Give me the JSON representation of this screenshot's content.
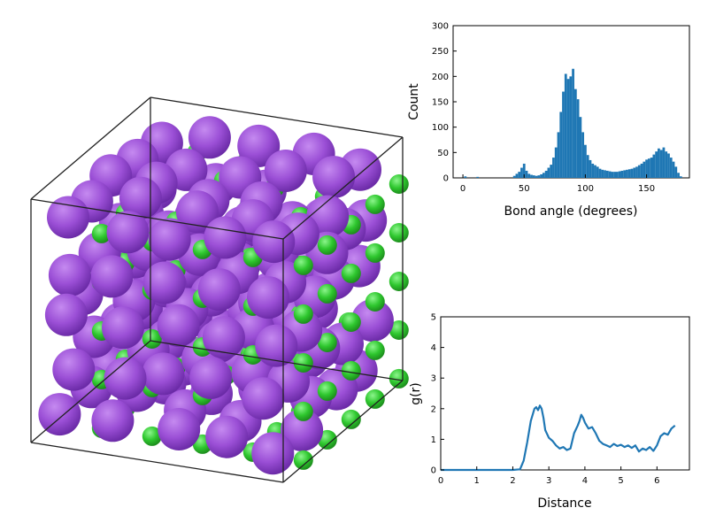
{
  "scene": {
    "atom_colors": {
      "large": "#9b4fd6",
      "small": "#2ec72e"
    },
    "box_edge_color": "#222222"
  },
  "chart_data": [
    {
      "type": "bar",
      "xlabel": "Bond angle (degrees)",
      "ylabel": "Count",
      "xlim": [
        -8,
        185
      ],
      "ylim": [
        0,
        300
      ],
      "xticks": [
        0,
        50,
        100,
        150
      ],
      "yticks": [
        0,
        50,
        100,
        150,
        200,
        250,
        300
      ],
      "color": "#1f77b4",
      "grid": false,
      "bins_center": [
        2,
        12,
        42,
        44,
        46,
        48,
        50,
        52,
        54,
        56,
        58,
        60,
        62,
        64,
        66,
        68,
        70,
        72,
        74,
        76,
        78,
        80,
        82,
        84,
        86,
        88,
        90,
        92,
        94,
        96,
        98,
        100,
        102,
        104,
        106,
        108,
        110,
        112,
        114,
        116,
        118,
        120,
        122,
        124,
        126,
        128,
        130,
        132,
        134,
        136,
        138,
        140,
        142,
        144,
        146,
        148,
        150,
        152,
        154,
        156,
        158,
        160,
        162,
        164,
        166,
        168,
        170,
        172,
        174,
        176,
        178
      ],
      "counts": [
        3,
        2,
        4,
        8,
        12,
        20,
        28,
        14,
        8,
        6,
        5,
        4,
        5,
        7,
        10,
        14,
        20,
        26,
        40,
        60,
        90,
        130,
        170,
        205,
        195,
        200,
        215,
        175,
        155,
        120,
        90,
        65,
        45,
        35,
        28,
        25,
        22,
        18,
        16,
        15,
        14,
        13,
        12,
        12,
        12,
        13,
        14,
        15,
        16,
        17,
        18,
        20,
        22,
        25,
        28,
        32,
        36,
        38,
        40,
        46,
        52,
        58,
        55,
        60,
        52,
        48,
        40,
        32,
        22,
        10,
        3
      ]
    },
    {
      "type": "line",
      "xlabel": "Distance",
      "ylabel": "g(r)",
      "xlim": [
        0,
        6.9
      ],
      "ylim": [
        0,
        5
      ],
      "xticks": [
        0,
        1,
        2,
        3,
        4,
        5,
        6
      ],
      "yticks": [
        0,
        1,
        2,
        3,
        4,
        5
      ],
      "color": "#1f77b4",
      "grid": false,
      "x": [
        0,
        1.0,
        2.0,
        2.2,
        2.3,
        2.4,
        2.5,
        2.6,
        2.65,
        2.7,
        2.75,
        2.8,
        2.85,
        2.9,
        3.0,
        3.1,
        3.2,
        3.3,
        3.4,
        3.5,
        3.6,
        3.7,
        3.8,
        3.85,
        3.9,
        3.95,
        4.0,
        4.1,
        4.2,
        4.3,
        4.4,
        4.5,
        4.6,
        4.7,
        4.8,
        4.9,
        5.0,
        5.1,
        5.2,
        5.3,
        5.4,
        5.5,
        5.6,
        5.7,
        5.8,
        5.9,
        6.0,
        6.1,
        6.2,
        6.3,
        6.4,
        6.5
      ],
      "y": [
        0,
        0,
        0,
        0.02,
        0.3,
        0.9,
        1.6,
        2.0,
        2.05,
        1.95,
        2.1,
        2.0,
        1.7,
        1.3,
        1.05,
        0.95,
        0.8,
        0.7,
        0.75,
        0.65,
        0.7,
        1.2,
        1.45,
        1.6,
        1.8,
        1.7,
        1.55,
        1.35,
        1.4,
        1.2,
        0.95,
        0.85,
        0.8,
        0.75,
        0.85,
        0.78,
        0.82,
        0.75,
        0.8,
        0.72,
        0.8,
        0.6,
        0.7,
        0.65,
        0.75,
        0.62,
        0.8,
        1.1,
        1.2,
        1.15,
        1.35,
        1.45
      ]
    }
  ]
}
